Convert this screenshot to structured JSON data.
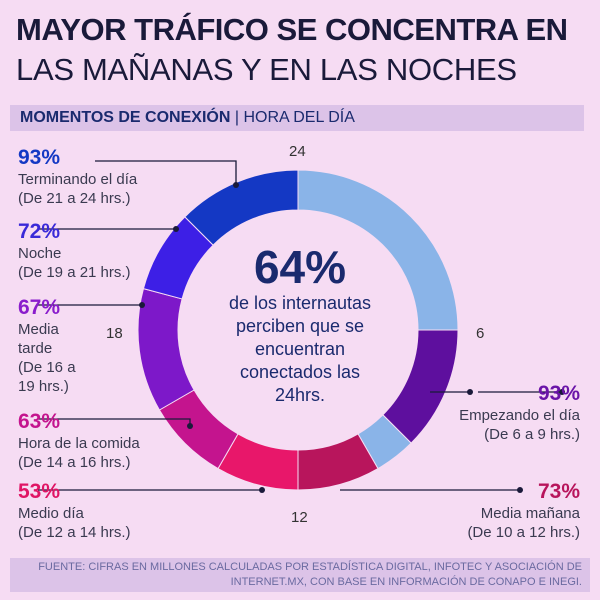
{
  "header": {
    "title_line1": "MAYOR TRÁFICO SE CONCENTRA EN",
    "title_line2": "LAS MAÑANAS Y EN LAS NOCHES",
    "band_bold": "MOMENTOS DE CONEXIÓN",
    "band_sep": "|",
    "band_light": "HORA DEL DÍA"
  },
  "center": {
    "big": "64%",
    "text": "de los internautas\nperciben que se\nencuentran\nconectados las\n24hrs."
  },
  "hours": {
    "h24": "24",
    "h6": "6",
    "h12": "12",
    "h18": "18"
  },
  "chart_data": {
    "type": "pie",
    "donut": true,
    "axis_unit": "hours",
    "segments": [
      {
        "start": 0,
        "end": 6,
        "color": "#8ab4e8",
        "value": null,
        "pct": "",
        "desc": ""
      },
      {
        "start": 6,
        "end": 9,
        "color": "#5e0f9e",
        "value": 93,
        "pct": "93%",
        "desc": "Empezando el día\n(De 6 a 9 hrs.)",
        "pct_color": "#6a14a8"
      },
      {
        "start": 9,
        "end": 10,
        "color": "#8ab4e8",
        "value": null,
        "pct": "",
        "desc": ""
      },
      {
        "start": 10,
        "end": 12,
        "color": "#b8155c",
        "value": 73,
        "pct": "73%",
        "desc": "Media mañana\n(De 10 a 12 hrs.)",
        "pct_color": "#b8155c"
      },
      {
        "start": 12,
        "end": 14,
        "color": "#e8176a",
        "value": 53,
        "pct": "53%",
        "desc": "Medio día\n(De 12 a 14 hrs.)",
        "pct_color": "#e01565"
      },
      {
        "start": 14,
        "end": 16,
        "color": "#c4148e",
        "value": 63,
        "pct": "63%",
        "desc": "Hora de la comida\n(De 14 a 16 hrs.)",
        "pct_color": "#c4148e"
      },
      {
        "start": 16,
        "end": 19,
        "color": "#7d18c9",
        "value": 67,
        "pct": "67%",
        "desc": "Media\ntarde\n(De 16 a\n19 hrs.)",
        "pct_color": "#8a1ccc"
      },
      {
        "start": 19,
        "end": 21,
        "color": "#3d1fe6",
        "value": 72,
        "pct": "72%",
        "desc": "Noche\n(De 19 a 21 hrs.)",
        "pct_color": "#3a2ad8"
      },
      {
        "start": 21,
        "end": 24,
        "color": "#1438c4",
        "value": 93,
        "pct": "93%",
        "desc": "Terminando el día\n(De 21 a 24 hrs.)",
        "pct_color": "#1438c4"
      }
    ]
  },
  "source": {
    "text": "FUENTE: CIFRAS EN MILLONES CALCULADAS POR ESTADÍSTICA DIGITAL, INFOTEC Y ASOCIACIÓN DE\nINTERNET.MX, CON BASE EN INFORMACIÓN DE CONAPO E INEGI."
  }
}
